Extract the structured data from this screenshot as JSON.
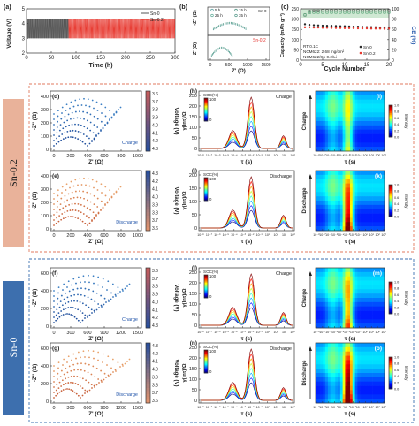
{
  "colors": {
    "sn02_band": "#e9b29a",
    "sn0_band": "#3d6fae",
    "sn02_box": "#e07a5f",
    "sn0_box": "#3b6fb0",
    "charge_red": "#e3342f",
    "sn0_black": "#2c2c2c",
    "ce_green": "#2e8b57",
    "series_sn0": "#555555",
    "series_sn02": "#e8382f"
  },
  "sections": {
    "sn02": {
      "label": "Sn-0.2"
    },
    "sn0": {
      "label": "Sn-0"
    }
  },
  "chart_data": [
    {
      "id": "a",
      "panel_label": "(a)",
      "type": "line",
      "xlabel": "Time (h)",
      "ylabel": "Voltage (V)",
      "xlim": [
        0,
        300
      ],
      "ylim": [
        2,
        5
      ],
      "xticks": [
        0,
        50,
        100,
        150,
        200,
        250,
        300
      ],
      "yticks": [
        2,
        3,
        4,
        5
      ],
      "legend": [
        "Sn-0",
        "Sn-0.2"
      ],
      "series": [
        {
          "name": "Sn-0",
          "voltage_range": [
            3.0,
            4.3
          ],
          "x_range": [
            0,
            85
          ]
        },
        {
          "name": "Sn-0.2",
          "voltage_range": [
            3.0,
            4.3
          ],
          "x_range": [
            85,
            300
          ]
        }
      ]
    },
    {
      "id": "b",
      "panel_label": "(b)",
      "type": "scatter",
      "xlabel": "Z' (Ω)",
      "ylabel": "-Z'' (Ω)",
      "xticks": [
        0,
        500,
        1000,
        1500
      ],
      "legend_times": [
        "5 h",
        "15 h",
        "25 h",
        "35 h"
      ],
      "annotations": [
        "Sn-0",
        "Sn-0.2"
      ]
    },
    {
      "id": "c",
      "panel_label": "(c)",
      "type": "scatter",
      "xlabel": "Cycle Number",
      "ylabel": "Capacity (mAh g⁻¹)",
      "y2label": "CE (%)",
      "xlim": [
        0,
        20
      ],
      "ylim": [
        0,
        250
      ],
      "y2lim": [
        0,
        100
      ],
      "xticks": [
        0,
        5,
        10,
        15,
        20
      ],
      "yticks": [
        0,
        50,
        100,
        150,
        200,
        250
      ],
      "y2ticks": [
        0,
        20,
        40,
        60,
        80,
        100
      ],
      "annotations": [
        "RT 0.1C",
        "NCM622: 2.68 mg/cm²",
        "NCM622/Sn-0.2/Li"
      ],
      "legend": [
        "Sn-0",
        "Sn-0.2"
      ],
      "cycles": [
        1,
        2,
        3,
        4,
        5,
        6,
        7,
        8,
        9,
        10,
        11,
        12,
        13,
        14,
        15,
        16,
        17,
        18,
        19,
        20
      ],
      "series": [
        {
          "name": "Sn-0",
          "values": [
            175,
            172,
            170,
            169,
            168,
            167,
            167,
            166,
            165,
            165,
            164,
            163,
            163,
            162,
            161,
            161,
            160,
            159,
            159,
            158
          ]
        },
        {
          "name": "Sn-0.2",
          "values": [
            160,
            160,
            159,
            159,
            158,
            158,
            157,
            157,
            157,
            156,
            156,
            156,
            155,
            155,
            155,
            154,
            154,
            154,
            153,
            153
          ]
        },
        {
          "name": "CE Sn-0",
          "values": [
            88,
            95,
            96,
            96,
            97,
            97,
            97,
            97,
            97,
            97,
            97,
            97,
            97,
            97,
            97,
            97,
            97,
            97,
            97,
            97
          ]
        },
        {
          "name": "CE Sn-0.2",
          "values": [
            92,
            96,
            97,
            97,
            97,
            97,
            97,
            97,
            97,
            97,
            97,
            97,
            97,
            97,
            97,
            97,
            97,
            97,
            97,
            97
          ]
        }
      ]
    },
    {
      "id": "d",
      "panel_label": "(d)",
      "type": "scatter",
      "xlabel": "Z' (Ω)",
      "ylabel": "-Z'' (Ω)",
      "xticks": [
        0,
        200,
        400,
        600,
        800,
        1000
      ],
      "yticks": [
        0,
        100,
        200,
        300,
        400
      ],
      "colorbar": {
        "label": "Voltage (V)",
        "ticks": [
          "3.6",
          "3.7",
          "3.8",
          "3.9",
          "4.0",
          "4.1",
          "4.2",
          "4.3"
        ]
      },
      "annotation": "Charge"
    },
    {
      "id": "e",
      "panel_label": "(e)",
      "type": "scatter",
      "xlabel": "Z' (Ω)",
      "ylabel": "-Z'' (Ω)",
      "xticks": [
        0,
        200,
        400,
        600,
        800,
        1000
      ],
      "yticks": [
        0,
        100,
        200,
        300,
        400
      ],
      "colorbar": {
        "label": "Voltage (V)",
        "ticks": [
          "3.6",
          "3.7",
          "3.8",
          "3.9",
          "4.0",
          "4.1",
          "4.2",
          "4.3"
        ]
      },
      "annotation": "Discharge"
    },
    {
      "id": "h",
      "panel_label": "(h)",
      "type": "line",
      "xlabel": "τ (s)",
      "ylabel": "γ(lnτ)/Ω",
      "yticks": [
        0,
        50,
        100,
        150,
        200,
        250
      ],
      "colorbar": {
        "label": "SOC(%)",
        "ticks": [
          "0",
          "100"
        ]
      },
      "annotation": "Charge"
    },
    {
      "id": "j",
      "panel_label": "(j)",
      "type": "line",
      "xlabel": "τ (s)",
      "ylabel": "γ(lnτ)/Ω",
      "yticks": [
        0,
        50,
        100,
        150,
        200
      ],
      "colorbar": {
        "label": "SOC(%)",
        "ticks": [
          "0",
          "100"
        ]
      },
      "annotation": "Discharge"
    },
    {
      "id": "i",
      "panel_label": "(i)",
      "type": "heatmap",
      "xlabel": "τ (s)",
      "ylabel": "Charge",
      "colorbar": {
        "label": "Intensity",
        "ticks": [
          "0.0",
          "0.2",
          "0.4",
          "0.6",
          "0.8",
          "1.0"
        ]
      }
    },
    {
      "id": "k",
      "panel_label": "(k)",
      "type": "heatmap",
      "xlabel": "τ (s)",
      "ylabel": "Discharge",
      "colorbar": {
        "label": "Intensity",
        "ticks": [
          "0.0",
          "0.2",
          "0.4",
          "0.6",
          "0.8",
          "1.0"
        ]
      }
    },
    {
      "id": "f",
      "panel_label": "(f)",
      "type": "scatter",
      "xlabel": "Z' (Ω)",
      "ylabel": "-Z'' (Ω)",
      "xticks": [
        0,
        300,
        600,
        900,
        1200,
        1500
      ],
      "yticks": [
        0,
        200,
        400,
        600
      ],
      "colorbar": {
        "label": "Voltage (V)",
        "ticks": [
          "3.6",
          "3.7",
          "3.8",
          "3.9",
          "4.0",
          "4.1",
          "4.2",
          "4.3"
        ]
      },
      "annotation": "Charge"
    },
    {
      "id": "g",
      "panel_label": "(g)",
      "type": "scatter",
      "xlabel": "Z' (Ω)",
      "ylabel": "-Z'' (Ω)",
      "xticks": [
        0,
        300,
        600,
        900,
        1200,
        1500
      ],
      "yticks": [
        0,
        200,
        400,
        600
      ],
      "colorbar": {
        "label": "Voltage (V)",
        "ticks": [
          "3.6",
          "3.7",
          "3.8",
          "3.9",
          "4.0",
          "4.1",
          "4.2",
          "4.3"
        ]
      },
      "annotation": "Discharge"
    },
    {
      "id": "l",
      "panel_label": "(l)",
      "type": "line",
      "xlabel": "τ (s)",
      "ylabel": "γ(lnτ)/Ω",
      "yticks": [
        0,
        50,
        100,
        150,
        200,
        250
      ],
      "colorbar": {
        "label": "SOC(%)",
        "ticks": [
          "0",
          "100"
        ]
      },
      "annotation": "Charge"
    },
    {
      "id": "n",
      "panel_label": "(n)",
      "type": "line",
      "xlabel": "τ (s)",
      "ylabel": "γ(lnτ)/Ω",
      "yticks": [
        0,
        50,
        100,
        150,
        200,
        250
      ],
      "colorbar": {
        "label": "SOC(%)",
        "ticks": [
          "0",
          "100"
        ]
      },
      "annotation": "Discharge"
    },
    {
      "id": "m",
      "panel_label": "(m)",
      "type": "heatmap",
      "xlabel": "τ (s)",
      "ylabel": "Charge",
      "colorbar": {
        "label": "Intensity",
        "ticks": [
          "0.0",
          "0.2",
          "0.4",
          "0.6",
          "0.8",
          "1.0"
        ]
      }
    },
    {
      "id": "o",
      "panel_label": "(o)",
      "type": "heatmap",
      "xlabel": "τ (s)",
      "ylabel": "Discharge",
      "colorbar": {
        "label": "Intensity",
        "ticks": [
          "0.0",
          "0.2",
          "0.4",
          "0.6",
          "0.8",
          "1.0"
        ]
      }
    }
  ]
}
